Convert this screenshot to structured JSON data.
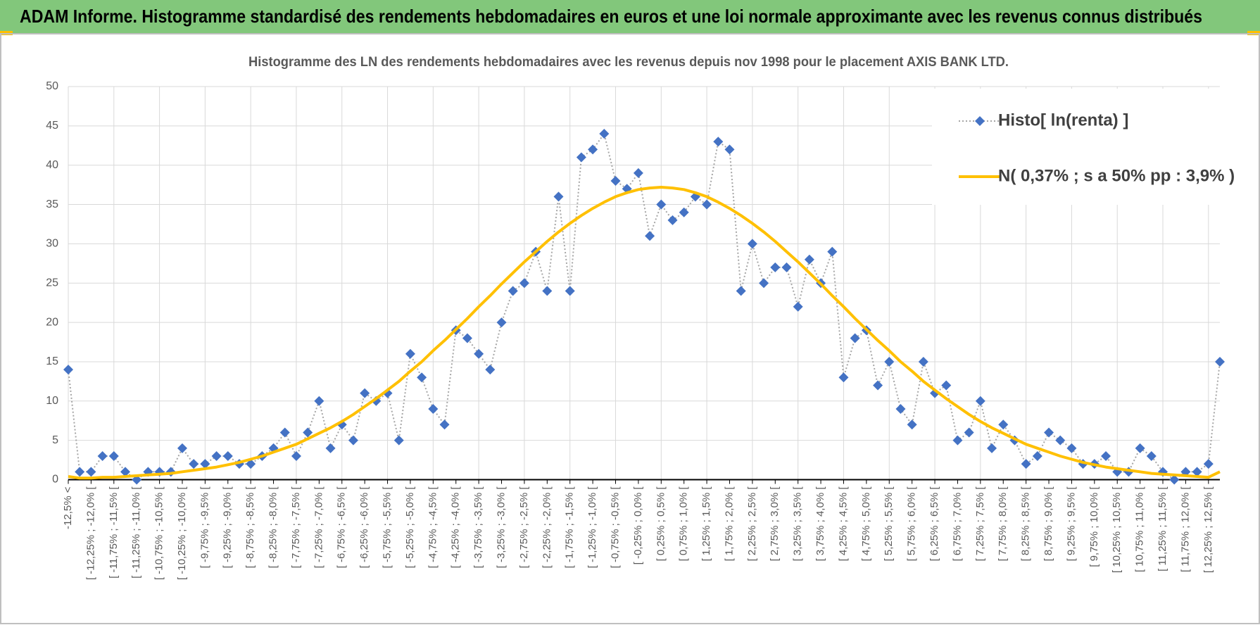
{
  "header": {
    "title": "ADAM Informe. Histogramme standardisé des rendements hebdomadaires en euros et une loi normale approximante avec les revenus connus distribués"
  },
  "chart_data": {
    "type": "line",
    "title": "Histogramme des LN des rendements hebdomadaires avec les revenus depuis nov 1998 pour le placement AXIS BANK LTD.",
    "categories": [
      "-12,5% <",
      null,
      "[ -12,25% ; -12,0% [",
      null,
      "[ -11,75% ; -11,5% [",
      null,
      "[ -11,25% ; -11,0% [",
      null,
      "[ -10,75% ; -10,5% [",
      null,
      "[ -10,25% ; -10,0% [",
      null,
      "[ -9,75% ; -9,5% [",
      null,
      "[ -9,25% ; -9,0% [",
      null,
      "[ -8,75% ; -8,5% [",
      null,
      "[ -8,25% ; -8,0% [",
      null,
      "[ -7,75% ; -7,5% [",
      null,
      "[ -7,25% ; -7,0% [",
      null,
      "[ -6,75% ; -6,5% [",
      null,
      "[ -6,25% ; -6,0% [",
      null,
      "[ -5,75% ; -5,5% [",
      null,
      "[ -5,25% ; -5,0% [",
      null,
      "[ -4,75% ; -4,5% [",
      null,
      "[ -4,25% ; -4,0% [",
      null,
      "[ -3,75% ; -3,5% [",
      null,
      "[ -3,25% ; -3,0% [",
      null,
      "[ -2,75% ; -2,5% [",
      null,
      "[ -2,25% ; -2,0% [",
      null,
      "[ -1,75% ; -1,5% [",
      null,
      "[ -1,25% ; -1,0% [",
      null,
      "[ -0,75% ; -0,5% [",
      null,
      "[ -0,25% ; 0,0% [",
      null,
      "[ 0,25% ; 0,5% [",
      null,
      "[ 0,75% ; 1,0% [",
      null,
      "[ 1,25% ; 1,5% [",
      null,
      "[ 1,75% ; 2,0% [",
      null,
      "[ 2,25% ; 2,5% [",
      null,
      "[ 2,75% ; 3,0% [",
      null,
      "[ 3,25% ; 3,5% [",
      null,
      "[ 3,75% ; 4,0% [",
      null,
      "[ 4,25% ; 4,5% [",
      null,
      "[ 4,75% ; 5,0% [",
      null,
      "[ 5,25% ; 5,5% [",
      null,
      "[ 5,75% ; 6,0% [",
      null,
      "[ 6,25% ; 6,5% [",
      null,
      "[ 6,75% ; 7,0% [",
      null,
      "[ 7,25% ; 7,5% [",
      null,
      "[ 7,75% ; 8,0% [",
      null,
      "[ 8,25% ; 8,5% [",
      null,
      "[ 8,75% ; 9,0% [",
      null,
      "[ 9,25% ; 9,5% [",
      null,
      "[ 9,75% ; 10,0% [",
      null,
      "[ 10,25% ; 10,5% [",
      null,
      "[ 10,75% ; 11,0% [",
      null,
      "[ 11,25% ; 11,5% [",
      null,
      "[ 11,75% ; 12,0% [",
      null,
      "[ 12,25% ; 12,5% [",
      null
    ],
    "series": [
      {
        "name": "Histo[ ln(renta) ]",
        "color": "#4472c4",
        "line_color": "#a6a6a6",
        "marker": "diamond",
        "values": [
          14,
          1,
          1,
          3,
          3,
          1,
          0,
          1,
          1,
          1,
          4,
          2,
          2,
          3,
          3,
          2,
          2,
          3,
          4,
          6,
          3,
          6,
          10,
          4,
          7,
          5,
          11,
          10,
          11,
          5,
          16,
          13,
          9,
          7,
          19,
          18,
          16,
          14,
          20,
          24,
          25,
          29,
          24,
          36,
          24,
          41,
          42,
          44,
          38,
          37,
          39,
          31,
          35,
          33,
          34,
          36,
          35,
          43,
          42,
          24,
          30,
          25,
          27,
          27,
          22,
          28,
          25,
          29,
          13,
          18,
          19,
          12,
          15,
          9,
          7,
          15,
          11,
          12,
          5,
          6,
          10,
          4,
          7,
          5,
          2,
          3,
          6,
          5,
          4,
          2,
          2,
          3,
          1,
          1,
          4,
          3,
          1,
          0,
          1,
          1,
          2,
          15
        ]
      },
      {
        "name": "N( 0,37% ; s a 50% pp : 3,9% )",
        "color": "#ffc000",
        "values": [
          0.4,
          0.2,
          0.2,
          0.3,
          0.3,
          0.4,
          0.5,
          0.6,
          0.7,
          0.8,
          1.0,
          1.2,
          1.4,
          1.6,
          1.9,
          2.2,
          2.6,
          3.0,
          3.5,
          4.0,
          4.5,
          5.2,
          5.9,
          6.6,
          7.4,
          8.3,
          9.3,
          10.3,
          11.4,
          12.5,
          13.8,
          15.0,
          16.4,
          17.7,
          19.1,
          20.5,
          22.0,
          23.4,
          24.9,
          26.3,
          27.7,
          29.0,
          30.3,
          31.5,
          32.6,
          33.6,
          34.5,
          35.3,
          36.0,
          36.5,
          36.9,
          37.1,
          37.2,
          37.1,
          36.9,
          36.5,
          36.0,
          35.3,
          34.5,
          33.6,
          32.6,
          31.5,
          30.3,
          29.0,
          27.7,
          26.3,
          24.9,
          23.4,
          22.0,
          20.5,
          19.1,
          17.7,
          16.4,
          15.0,
          13.8,
          12.5,
          11.4,
          10.3,
          9.3,
          8.3,
          7.4,
          6.6,
          5.9,
          5.2,
          4.5,
          4.0,
          3.5,
          3.0,
          2.6,
          2.2,
          1.9,
          1.6,
          1.4,
          1.2,
          1.0,
          0.8,
          0.7,
          0.6,
          0.5,
          0.4,
          0.3,
          1.0
        ]
      }
    ],
    "ylim": [
      0,
      50
    ],
    "yticks": [
      0,
      5,
      10,
      15,
      20,
      25,
      30,
      35,
      40,
      45,
      50
    ],
    "grid": true,
    "legend": "upper right"
  }
}
